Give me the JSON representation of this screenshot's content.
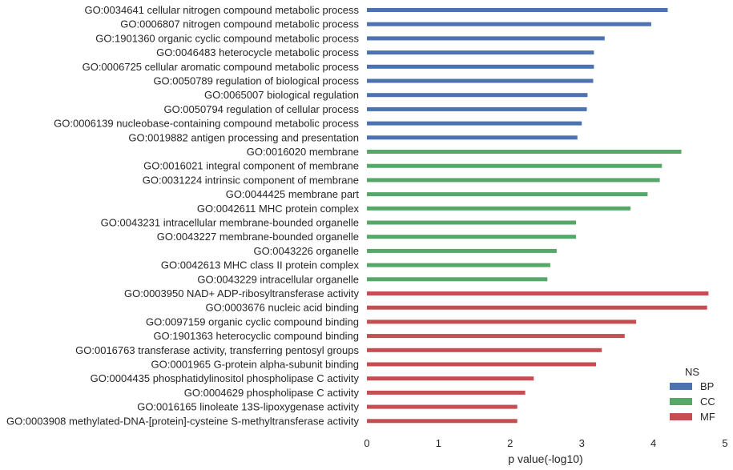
{
  "chart_data": {
    "type": "bar",
    "orientation": "horizontal",
    "xlabel": "p value(-log10)",
    "ylabel": "",
    "xlim": [
      0,
      5
    ],
    "xticks": [
      "0",
      "1",
      "2",
      "3",
      "4",
      "5"
    ],
    "grid": false,
    "legend": {
      "title": "NS",
      "position": "bottom-right",
      "entries": [
        {
          "name": "BP",
          "color": "#4c72b0"
        },
        {
          "name": "CC",
          "color": "#55a868"
        },
        {
          "name": "MF",
          "color": "#c44e52"
        }
      ]
    },
    "bars": [
      {
        "label": "GO:0034641 cellular nitrogen compound metabolic process",
        "value": 4.2,
        "ns": "BP"
      },
      {
        "label": "GO:0006807 nitrogen compound metabolic process",
        "value": 3.97,
        "ns": "BP"
      },
      {
        "label": "GO:1901360 organic cyclic compound metabolic process",
        "value": 3.32,
        "ns": "BP"
      },
      {
        "label": "GO:0046483 heterocycle metabolic process",
        "value": 3.17,
        "ns": "BP"
      },
      {
        "label": "GO:0006725 cellular aromatic compound metabolic process",
        "value": 3.17,
        "ns": "BP"
      },
      {
        "label": "GO:0050789 regulation of biological process",
        "value": 3.16,
        "ns": "BP"
      },
      {
        "label": "GO:0065007 biological regulation",
        "value": 3.08,
        "ns": "BP"
      },
      {
        "label": "GO:0050794 regulation of cellular process",
        "value": 3.07,
        "ns": "BP"
      },
      {
        "label": "GO:0006139 nucleobase-containing compound metabolic process",
        "value": 3.0,
        "ns": "BP"
      },
      {
        "label": "GO:0019882 antigen processing and presentation",
        "value": 2.94,
        "ns": "BP"
      },
      {
        "label": "GO:0016020 membrane",
        "value": 4.39,
        "ns": "CC"
      },
      {
        "label": "GO:0016021 integral component of membrane",
        "value": 4.12,
        "ns": "CC"
      },
      {
        "label": "GO:0031224 intrinsic component of membrane",
        "value": 4.09,
        "ns": "CC"
      },
      {
        "label": "GO:0044425 membrane part",
        "value": 3.92,
        "ns": "CC"
      },
      {
        "label": "GO:0042611 MHC protein complex",
        "value": 3.68,
        "ns": "CC"
      },
      {
        "label": "GO:0043231 intracellular membrane-bounded organelle",
        "value": 2.92,
        "ns": "CC"
      },
      {
        "label": "GO:0043227 membrane-bounded organelle",
        "value": 2.92,
        "ns": "CC"
      },
      {
        "label": "GO:0043226 organelle",
        "value": 2.65,
        "ns": "CC"
      },
      {
        "label": "GO:0042613 MHC class II protein complex",
        "value": 2.56,
        "ns": "CC"
      },
      {
        "label": "GO:0043229 intracellular organelle",
        "value": 2.52,
        "ns": "CC"
      },
      {
        "label": "GO:0003950 NAD+ ADP-ribosyltransferase activity",
        "value": 4.77,
        "ns": "MF"
      },
      {
        "label": "GO:0003676 nucleic acid binding",
        "value": 4.75,
        "ns": "MF"
      },
      {
        "label": "GO:0097159 organic cyclic compound binding",
        "value": 3.76,
        "ns": "MF"
      },
      {
        "label": "GO:1901363 heterocyclic compound binding",
        "value": 3.6,
        "ns": "MF"
      },
      {
        "label": "GO:0016763 transferase activity, transferring pentosyl groups",
        "value": 3.28,
        "ns": "MF"
      },
      {
        "label": "GO:0001965 G-protein alpha-subunit binding",
        "value": 3.2,
        "ns": "MF"
      },
      {
        "label": "GO:0004435 phosphatidylinositol phospholipase C activity",
        "value": 2.33,
        "ns": "MF"
      },
      {
        "label": "GO:0004629 phospholipase C activity",
        "value": 2.21,
        "ns": "MF"
      },
      {
        "label": "GO:0016165 linoleate 13S-lipoxygenase activity",
        "value": 2.1,
        "ns": "MF"
      },
      {
        "label": "GO:0003908 methylated-DNA-[protein]-cysteine S-methyltransferase activity",
        "value": 2.1,
        "ns": "MF"
      }
    ]
  }
}
